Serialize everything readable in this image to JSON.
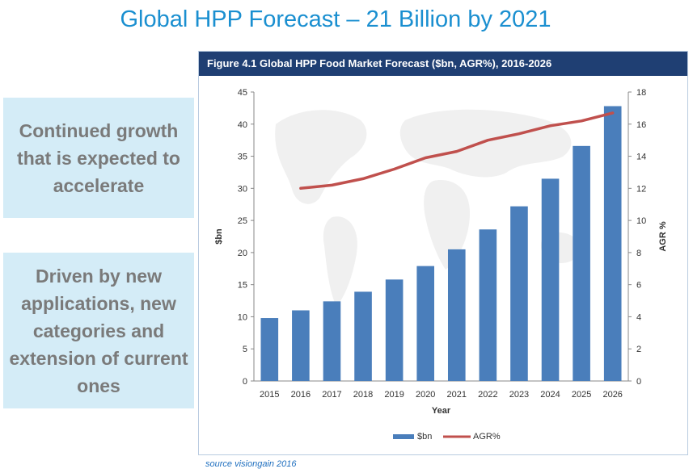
{
  "slide": {
    "title": "Global HPP Forecast – 21 Billion by 2021",
    "callouts": [
      "Continued growth that is expected to accelerate",
      "Driven by new applications, new categories and extension of current ones"
    ],
    "source": "source visiongain 2016"
  },
  "figure": {
    "header": "Figure 4.1 Global HPP Food Market Forecast ($bn, AGR%), 2016-2026"
  },
  "colors": {
    "bars": "#4a7ebb",
    "line": "#c0504d",
    "title": "#1a8fd0",
    "header_bg": "#1f3f73"
  },
  "chart_data": {
    "type": "bar",
    "categories": [
      "2015",
      "2016",
      "2017",
      "2018",
      "2019",
      "2020",
      "2021",
      "2022",
      "2023",
      "2024",
      "2025",
      "2026"
    ],
    "series": [
      {
        "name": "$bn",
        "type": "bar",
        "axis": "left",
        "values": [
          9.8,
          11.0,
          12.4,
          13.9,
          15.8,
          17.9,
          20.5,
          23.6,
          27.2,
          31.5,
          36.6,
          42.8
        ]
      },
      {
        "name": "AGR%",
        "type": "line",
        "axis": "right",
        "values": [
          null,
          12.0,
          12.2,
          12.6,
          13.2,
          13.9,
          14.3,
          15.0,
          15.4,
          15.9,
          16.2,
          16.7
        ]
      }
    ],
    "xlabel": "Year",
    "ylabel": "$bn",
    "y2label": "AGR %",
    "ylim": [
      0,
      45
    ],
    "y2lim": [
      0,
      18
    ],
    "yticks": [
      "0",
      "5",
      "10",
      "15",
      "20",
      "25",
      "30",
      "35",
      "40",
      "45"
    ],
    "y2ticks": [
      "0",
      "2",
      "4",
      "6",
      "8",
      "10",
      "12",
      "14",
      "16",
      "18"
    ],
    "legend": [
      "$bn",
      "AGR%"
    ],
    "legend_position": "bottom",
    "grid": false
  }
}
